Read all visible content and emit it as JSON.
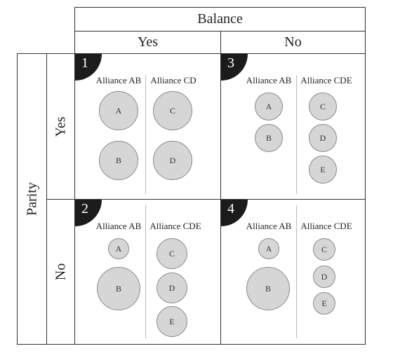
{
  "balance": {
    "title": "Balance",
    "yes": "Yes",
    "no": "No"
  },
  "parity": {
    "title": "Parity",
    "yes": "Yes",
    "no": "No"
  },
  "cells": [
    {
      "number": "1",
      "left_label": "Alliance AB",
      "right_label": "Alliance CD",
      "left": [
        "A",
        "B"
      ],
      "right": [
        "C",
        "D"
      ]
    },
    {
      "number": "3",
      "left_label": "Alliance AB",
      "right_label": "Alliance CDE",
      "left": [
        "A",
        "B"
      ],
      "right": [
        "C",
        "D",
        "E"
      ]
    },
    {
      "number": "2",
      "left_label": "Alliance AB",
      "right_label": "Alliance CDE",
      "left": [
        "A",
        "B"
      ],
      "right": [
        "C",
        "D",
        "E"
      ]
    },
    {
      "number": "4",
      "left_label": "Alliance AB",
      "right_label": "Alliance CDE",
      "left": [
        "A",
        "B"
      ],
      "right": [
        "C",
        "D",
        "E"
      ]
    }
  ]
}
